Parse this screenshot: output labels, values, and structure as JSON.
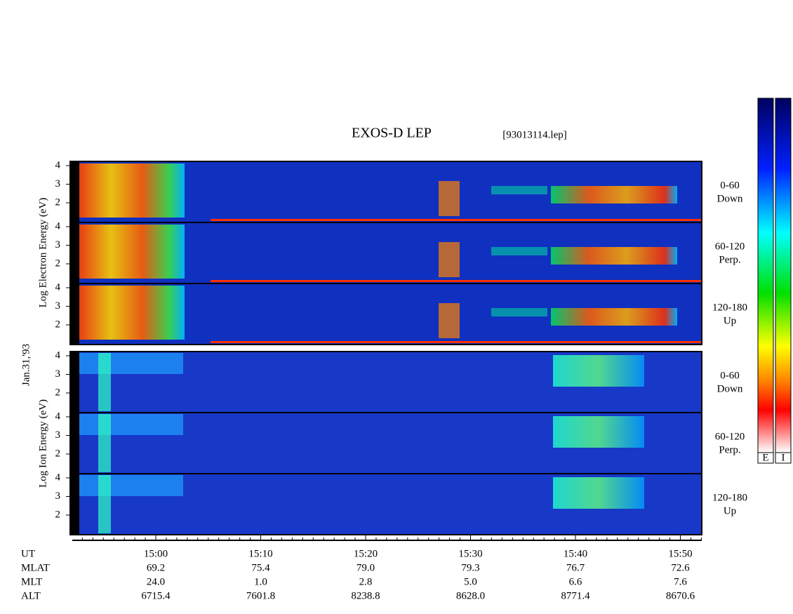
{
  "title": "EXOS-D LEP",
  "file": "[93013114.lep]",
  "date": "Jan.31,'93",
  "axis_labels": [
    "Log Electron Energy (eV)",
    "Log Ion Energy (eV)"
  ],
  "panels": [
    {
      "ticks": [
        "4",
        "3",
        "2"
      ],
      "angle": "0-60",
      "direction": "Down"
    },
    {
      "ticks": [
        "4",
        "3",
        "2"
      ],
      "angle": "60-120",
      "direction": "Perp."
    },
    {
      "ticks": [
        "4",
        "3",
        "2"
      ],
      "angle": "120-180",
      "direction": "Up"
    },
    {
      "ticks": [
        "4",
        "3",
        "2"
      ],
      "angle": "0-60",
      "direction": "Down"
    },
    {
      "ticks": [
        "4",
        "3",
        "2"
      ],
      "angle": "60-120",
      "direction": "Perp."
    },
    {
      "ticks": [
        "4",
        "3",
        "2"
      ],
      "angle": "120-180",
      "direction": "Up"
    }
  ],
  "rows": [
    {
      "label": "UT",
      "values": [
        "15:00",
        "15:10",
        "15:20",
        "15:30",
        "15:40",
        "15:50"
      ]
    },
    {
      "label": "MLAT",
      "values": [
        "69.2",
        "75.4",
        "79.0",
        "79.3",
        "76.7",
        "72.6"
      ]
    },
    {
      "label": "MLT",
      "values": [
        "24.0",
        "1.0",
        "2.8",
        "5.0",
        "6.6",
        "7.6"
      ]
    },
    {
      "label": "ALT",
      "values": [
        "6715.4",
        "7601.8",
        "8238.8",
        "8628.0",
        "8771.4",
        "8670.6"
      ]
    }
  ],
  "colorbar_labels": [
    "E",
    "I"
  ]
}
